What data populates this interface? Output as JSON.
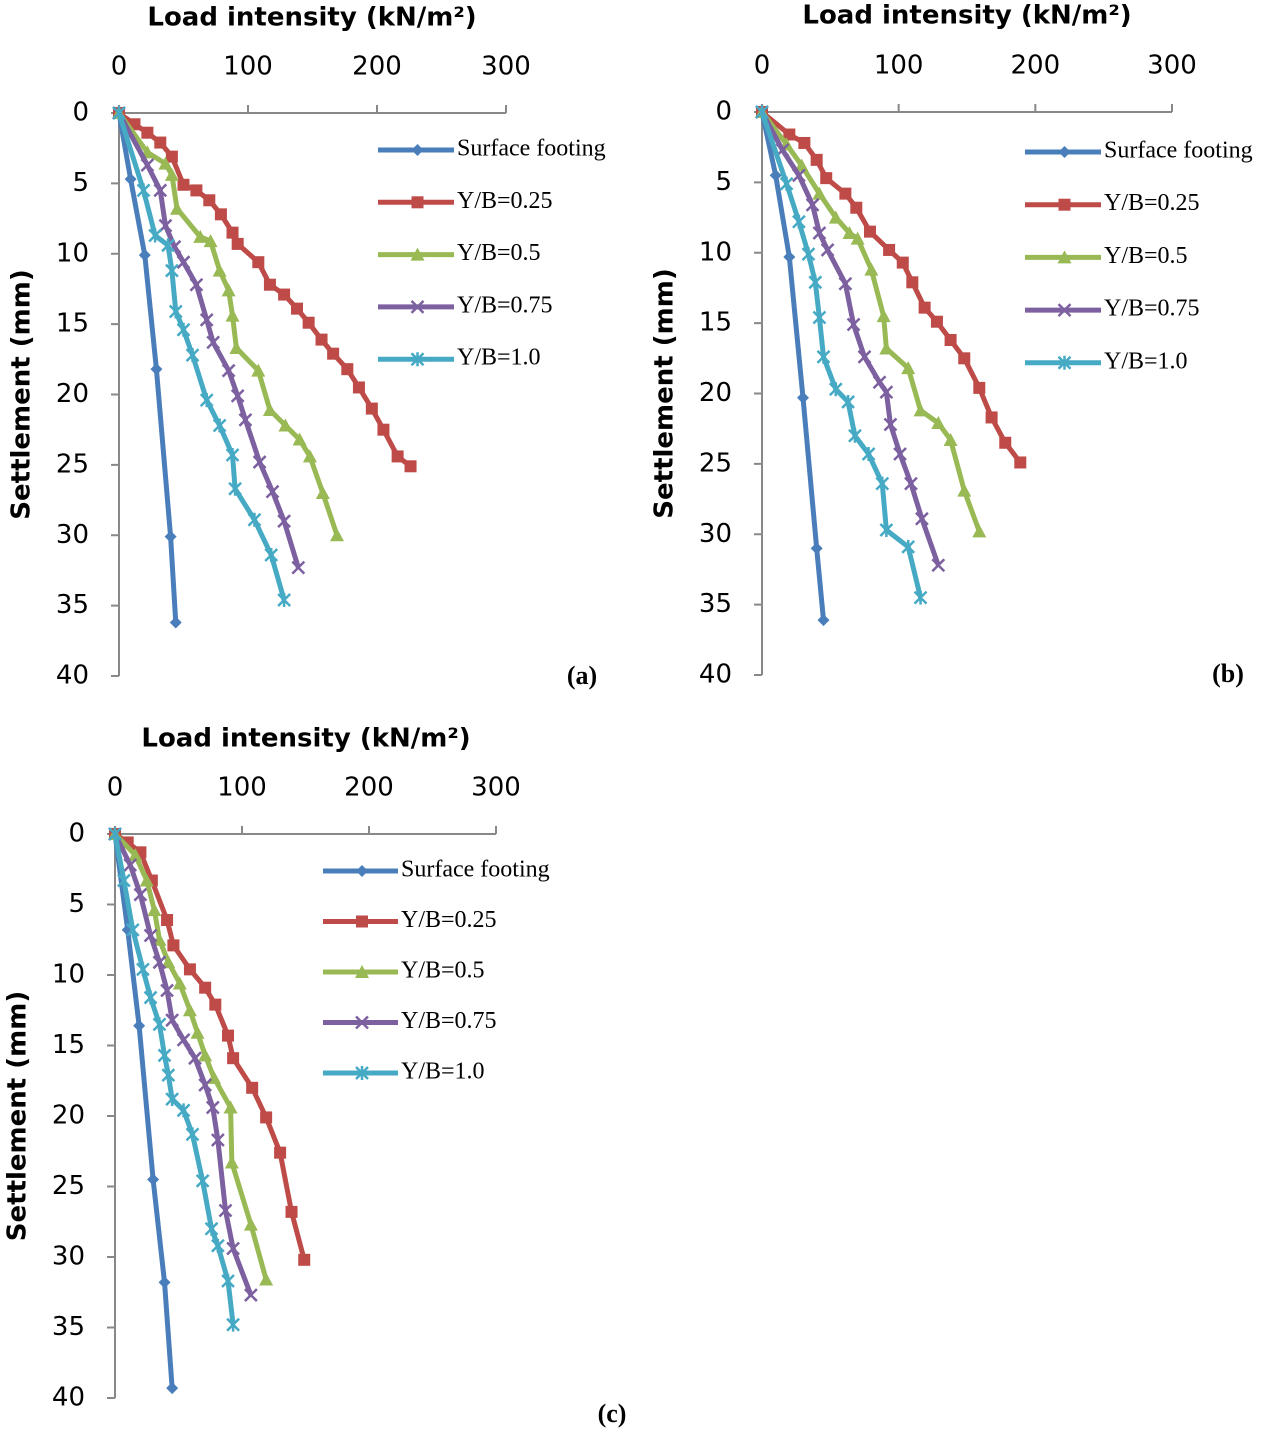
{
  "chart_data": [
    {
      "type": "line",
      "title": "Load intensity (kN/m²)",
      "y_label": "Settlement (mm)",
      "panel_label": "(a)",
      "xlim": [
        0,
        300
      ],
      "xticks": [
        0,
        100,
        200,
        300
      ],
      "ylim": [
        0,
        40
      ],
      "yticks": [
        0,
        5,
        10,
        15,
        20,
        25,
        30,
        35,
        40
      ],
      "y_inverted": true,
      "x_axis_position": "top",
      "grid": false,
      "legend": "top-right",
      "series": [
        {
          "name": "Surface footing",
          "color": "#4a7ebb",
          "marker": "diamond",
          "x": [
            0,
            9,
            20,
            29,
            40,
            44
          ],
          "values": [
            0,
            4.7,
            10.1,
            18.2,
            30.1,
            36.2
          ]
        },
        {
          "name": "Y/B=0.25",
          "color": "#be4b48",
          "marker": "square",
          "x": [
            0,
            12,
            22,
            32,
            41,
            50,
            60,
            70,
            79,
            88,
            92,
            108,
            117,
            128,
            138,
            147,
            157,
            166,
            177,
            186,
            196,
            205,
            216,
            226
          ],
          "values": [
            0,
            0.8,
            1.4,
            2.1,
            3.1,
            5.1,
            5.5,
            6.2,
            7.2,
            8.5,
            9.3,
            10.6,
            12.2,
            12.9,
            13.9,
            14.9,
            16.1,
            17.1,
            18.2,
            19.5,
            21,
            22.5,
            24.4,
            25.1
          ]
        },
        {
          "name": "Y/B=0.5",
          "color": "#98b954",
          "marker": "triangle",
          "x": [
            0,
            22,
            36,
            41,
            45,
            63,
            71,
            78,
            85,
            88,
            91,
            108,
            117,
            129,
            140,
            148,
            158,
            169
          ],
          "values": [
            0,
            2.8,
            3.6,
            4.4,
            6.8,
            8.8,
            9.1,
            11.2,
            12.6,
            14.4,
            16.7,
            18.3,
            21.1,
            22.2,
            23.2,
            24.4,
            27,
            30
          ]
        },
        {
          "name": "Y/B=0.75",
          "color": "#7d60a0",
          "marker": "x",
          "x": [
            0,
            22,
            32,
            36,
            43,
            50,
            60,
            68,
            73,
            85,
            92,
            98,
            109,
            119,
            128,
            139
          ],
          "values": [
            0,
            3.7,
            5.5,
            8,
            9.5,
            10.6,
            12.2,
            14.7,
            16.3,
            18.3,
            20.1,
            21.8,
            24.8,
            26.9,
            29,
            32.3
          ]
        },
        {
          "name": "Y/B=1.0",
          "color": "#46aac5",
          "marker": "star",
          "x": [
            0,
            19,
            28,
            38,
            41,
            44,
            50,
            57,
            68,
            78,
            88,
            90,
            105,
            118,
            128
          ],
          "values": [
            0,
            5.5,
            8.7,
            9.4,
            11.2,
            14.1,
            15.4,
            17.2,
            20.4,
            22.2,
            24.3,
            26.7,
            28.9,
            31.4,
            34.6
          ]
        }
      ]
    },
    {
      "type": "line",
      "title": "Load intensity (kN/m²)",
      "y_label": "Settlement (mm)",
      "panel_label": "(b)",
      "xlim": [
        0,
        300
      ],
      "xticks": [
        0,
        100,
        200,
        300
      ],
      "ylim": [
        0,
        40
      ],
      "yticks": [
        0,
        5,
        10,
        15,
        20,
        25,
        30,
        35,
        40
      ],
      "y_inverted": true,
      "x_axis_position": "top",
      "grid": false,
      "legend": "top-right",
      "series": [
        {
          "name": "Surface footing",
          "color": "#4a7ebb",
          "marker": "diamond",
          "x": [
            0,
            10,
            20,
            30,
            40,
            45
          ],
          "values": [
            0,
            4.5,
            10.3,
            20.3,
            31,
            36.1
          ]
        },
        {
          "name": "Y/B=0.25",
          "color": "#be4b48",
          "marker": "square",
          "x": [
            0,
            20,
            31,
            40,
            47,
            61,
            69,
            79,
            93,
            103,
            110,
            119,
            128,
            138,
            148,
            159,
            168,
            178,
            189
          ],
          "values": [
            0,
            1.6,
            2.2,
            3.4,
            4.7,
            5.8,
            6.8,
            8.5,
            9.8,
            10.7,
            12.1,
            13.9,
            14.9,
            16.2,
            17.5,
            19.6,
            21.7,
            23.5,
            24.9
          ]
        },
        {
          "name": "Y/B=0.5",
          "color": "#98b954",
          "marker": "triangle",
          "x": [
            0,
            18,
            29,
            42,
            54,
            64,
            70,
            80,
            89,
            91,
            107,
            116,
            129,
            138,
            148,
            159
          ],
          "values": [
            0,
            2.3,
            3.8,
            5.8,
            7.5,
            8.6,
            9,
            11.2,
            14.5,
            16.8,
            18.2,
            21.2,
            22.1,
            23.3,
            26.9,
            29.8
          ]
        },
        {
          "name": "Y/B=0.75",
          "color": "#7d60a0",
          "marker": "x",
          "x": [
            0,
            15,
            27,
            37,
            42,
            48,
            61,
            67,
            75,
            86,
            91,
            94,
            101,
            109,
            117,
            129
          ],
          "values": [
            0,
            2.7,
            4.5,
            6.6,
            8.6,
            9.8,
            12.2,
            15.1,
            17.4,
            19.2,
            19.9,
            22.2,
            24.3,
            26.4,
            28.9,
            32.2
          ]
        },
        {
          "name": "Y/B=1.0",
          "color": "#46aac5",
          "marker": "star",
          "x": [
            0,
            18,
            27,
            34,
            39,
            42,
            45,
            54,
            63,
            68,
            78,
            88,
            91,
            107,
            116
          ],
          "values": [
            0,
            5.1,
            7.8,
            10.1,
            12.1,
            14.6,
            17.4,
            19.7,
            20.6,
            23,
            24.3,
            26.4,
            29.7,
            30.9,
            34.5
          ]
        }
      ]
    },
    {
      "type": "line",
      "title": "Load intensity (kN/m²)",
      "y_label": "Settlement (mm)",
      "panel_label": "(c)",
      "xlim": [
        0,
        300
      ],
      "xticks": [
        0,
        100,
        200,
        300
      ],
      "ylim": [
        0,
        40
      ],
      "yticks": [
        0,
        5,
        10,
        15,
        20,
        25,
        30,
        35,
        40
      ],
      "y_inverted": true,
      "x_axis_position": "top",
      "grid": false,
      "legend": "top-right",
      "series": [
        {
          "name": "Surface footing",
          "color": "#4a7ebb",
          "marker": "diamond",
          "x": [
            0,
            10,
            19,
            30,
            39,
            45
          ],
          "values": [
            0,
            6.8,
            13.6,
            24.5,
            31.8,
            39.3
          ]
        },
        {
          "name": "Y/B=0.25",
          "color": "#be4b48",
          "marker": "square",
          "x": [
            0,
            10,
            20,
            29,
            41,
            46,
            59,
            71,
            79,
            89,
            93,
            108,
            119,
            130,
            139,
            149
          ],
          "values": [
            0,
            0.6,
            1.3,
            3.3,
            6.1,
            7.9,
            9.6,
            10.9,
            12.1,
            14.3,
            15.9,
            18,
            20.1,
            22.6,
            26.8,
            30.2
          ]
        },
        {
          "name": "Y/B=0.5",
          "color": "#98b954",
          "marker": "triangle",
          "x": [
            0,
            16,
            25,
            31,
            35,
            42,
            51,
            59,
            65,
            71,
            78,
            91,
            92,
            107,
            119
          ],
          "values": [
            0,
            1.5,
            3.3,
            5.4,
            7.5,
            9.1,
            10.6,
            12.5,
            14.1,
            15.7,
            17.3,
            19.4,
            23.3,
            27.7,
            31.6
          ]
        },
        {
          "name": "Y/B=0.75",
          "color": "#7d60a0",
          "marker": "x",
          "x": [
            0,
            12,
            20,
            28,
            35,
            41,
            45,
            54,
            63,
            71,
            77,
            81,
            87,
            93,
            107
          ],
          "values": [
            0,
            2.2,
            4.3,
            7.2,
            9.1,
            11.1,
            13.2,
            14.6,
            15.9,
            17.8,
            19.4,
            21.7,
            26.7,
            29.4,
            32.7
          ]
        },
        {
          "name": "Y/B=1.0",
          "color": "#46aac5",
          "marker": "star",
          "x": [
            0,
            7,
            14,
            22,
            28,
            35,
            39,
            42,
            45,
            54,
            61,
            69,
            76,
            81,
            89,
            93
          ],
          "values": [
            0,
            3.3,
            6.8,
            9.6,
            11.6,
            13.5,
            15.7,
            17.1,
            18.8,
            19.6,
            21.3,
            24.6,
            28,
            29.2,
            31.7,
            34.8
          ]
        }
      ]
    }
  ]
}
